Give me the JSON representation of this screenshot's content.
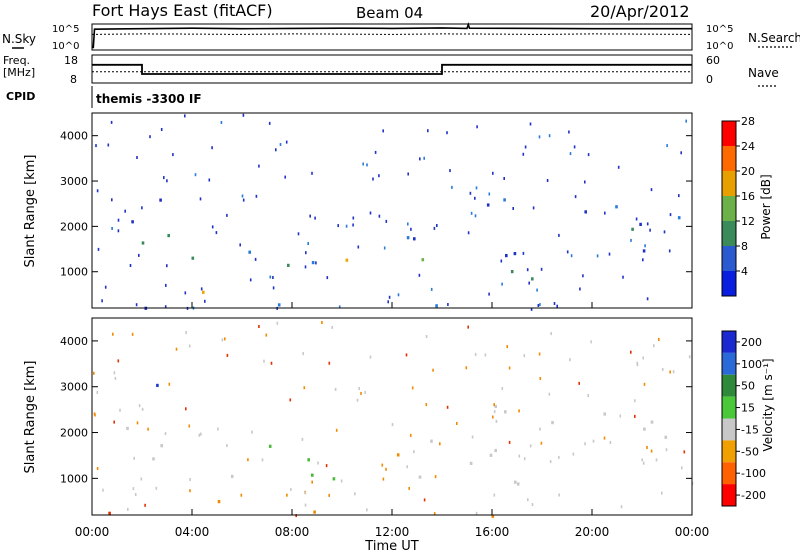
{
  "header": {
    "station": "Fort Hays East (fitACF)",
    "beam": "Beam 04",
    "date": "20/Apr/2012"
  },
  "left_labels": {
    "nsky": "N.Sky",
    "freq_line1": "Freq.",
    "freq_line2": "[MHz]",
    "cpid": "CPID"
  },
  "right_labels": {
    "nsearch": "N.Search",
    "nave": "Nave"
  },
  "cpid_text": "themis -3300 IF",
  "colors": {
    "frame": "#000000",
    "ground": "#ffffff"
  },
  "chart_data": [
    {
      "type": "line",
      "panel": "noise",
      "ylabel": "",
      "y_ticks_left": [
        "10^5",
        "10^0"
      ],
      "y_ticks_right": [
        "10^5",
        "10^0"
      ],
      "series": [
        {
          "values_desc": "",
          "x": [
            0,
            0.05,
            0.1,
            2,
            4,
            6,
            8,
            10,
            12,
            14,
            15,
            15.05,
            15.1,
            18,
            20,
            22,
            24
          ],
          "y": [
            0.1,
            0.1,
            0.8,
            0.82,
            0.84,
            0.82,
            0.83,
            0.84,
            0.83,
            0.85,
            0.83,
            0.98,
            0.84,
            0.83,
            0.82,
            0.82,
            0.82
          ]
        },
        {
          "x": [
            0,
            2,
            4,
            6,
            8,
            10,
            12,
            14,
            16,
            18,
            20,
            22,
            24
          ],
          "y": [
            0.6,
            0.62,
            0.61,
            0.6,
            0.62,
            0.61,
            0.6,
            0.62,
            0.61,
            0.6,
            0.62,
            0.61,
            0.6
          ]
        }
      ]
    },
    {
      "type": "line",
      "panel": "frequency",
      "y_ticks_left": [
        "18",
        "8"
      ],
      "y_ticks_right": [
        "60",
        "0"
      ],
      "series": [
        {
          "x": [
            0,
            2.0,
            2.0,
            14.0,
            14.0,
            24
          ],
          "y": [
            14.5,
            14.5,
            11.2,
            11.2,
            14.5,
            14.5
          ]
        },
        {
          "x": [
            0,
            24
          ],
          "y": [
            12.0,
            12.0
          ]
        }
      ],
      "ylim": [
        8,
        18
      ]
    },
    {
      "type": "heatmap",
      "panel": "power",
      "ylabel": "Slant Range [km]",
      "y_ticks": [
        "1000",
        "2000",
        "3000",
        "4000"
      ],
      "ylim": [
        200,
        4500
      ],
      "colorbar_label": "Power [dB]",
      "colorbar_ticks": [
        "4",
        "8",
        "12",
        "16",
        "20",
        "24",
        "28"
      ]
    },
    {
      "type": "heatmap",
      "panel": "velocity",
      "ylabel": "Slant Range [km]",
      "y_ticks": [
        "1000",
        "2000",
        "3000",
        "4000"
      ],
      "ylim": [
        200,
        4500
      ],
      "colorbar_label": "Velocity [m s⁻¹]",
      "colorbar_ticks": [
        "200",
        "100",
        "50",
        "15",
        "-15",
        "-50",
        "-100",
        "-200"
      ],
      "x_ticks": [
        "00:00",
        "04:00",
        "08:00",
        "12:00",
        "16:00",
        "20:00",
        "00:00"
      ],
      "xlabel": "Time UT"
    }
  ]
}
